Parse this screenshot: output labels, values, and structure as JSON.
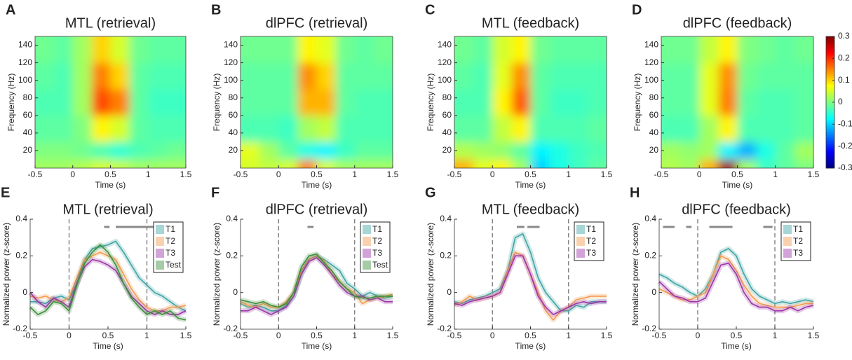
{
  "chart_data": [
    {
      "type": "heatmap",
      "panel": "A",
      "title": "MTL (retrieval)",
      "xlabel": "Time (s)",
      "ylabel": "Frequency (Hz)",
      "colormap": "jet",
      "clim": [
        -0.3,
        0.3
      ],
      "xbins": [
        -0.5,
        -0.25,
        0,
        0.25,
        0.5,
        0.75,
        1,
        1.25,
        1.5
      ],
      "ybins": [
        0,
        10,
        30,
        60,
        90,
        120,
        150
      ],
      "values": [
        [
          0.02,
          0.02,
          0.03,
          0.05,
          0.04,
          0.02,
          0.02,
          0.02
        ],
        [
          0,
          0,
          -0.01,
          -0.03,
          -0.05,
          -0.03,
          -0.02,
          -0.01
        ],
        [
          -0.02,
          -0.02,
          0,
          0.08,
          0.05,
          -0.02,
          -0.03,
          -0.03
        ],
        [
          -0.03,
          -0.03,
          0.02,
          0.18,
          0.15,
          -0.02,
          -0.04,
          -0.04
        ],
        [
          -0.02,
          -0.03,
          0.02,
          0.15,
          0.1,
          -0.02,
          -0.03,
          -0.03
        ],
        [
          -0.01,
          -0.02,
          0.02,
          0.1,
          0.05,
          -0.01,
          -0.02,
          -0.02
        ]
      ],
      "xlim": [
        -0.5,
        1.5
      ],
      "xticks": [
        -0.5,
        0,
        0.5,
        1,
        1.5
      ],
      "ylim": [
        0,
        150
      ],
      "yticks": [
        20,
        40,
        60,
        80,
        100,
        120,
        140
      ]
    },
    {
      "type": "heatmap",
      "panel": "B",
      "title": "dlPFC (retrieval)",
      "xlabel": "Time (s)",
      "ylabel": "Frequency (Hz)",
      "colormap": "jet",
      "clim": [
        -0.3,
        0.3
      ],
      "xbins": [
        -0.5,
        -0.25,
        0,
        0.25,
        0.5,
        0.75,
        1,
        1.25,
        1.5
      ],
      "ybins": [
        0,
        10,
        30,
        60,
        90,
        120,
        150
      ],
      "values": [
        [
          0.05,
          0.04,
          0.05,
          0.15,
          0.05,
          0.02,
          0.02,
          0.02
        ],
        [
          0.06,
          0.02,
          -0.02,
          -0.06,
          -0.08,
          -0.04,
          -0.02,
          -0.02
        ],
        [
          -0.03,
          -0.03,
          -0.04,
          0.02,
          0.04,
          -0.03,
          -0.03,
          -0.03
        ],
        [
          -0.02,
          -0.02,
          -0.02,
          0.12,
          0.12,
          -0.02,
          -0.03,
          -0.03
        ],
        [
          -0.02,
          -0.02,
          -0.02,
          0.14,
          0.1,
          -0.02,
          -0.02,
          -0.02
        ],
        [
          -0.01,
          -0.01,
          -0.01,
          0.08,
          0.06,
          -0.01,
          -0.02,
          -0.01
        ]
      ],
      "xlim": [
        -0.5,
        1.5
      ],
      "xticks": [
        -0.5,
        0,
        0.5,
        1,
        1.5
      ],
      "ylim": [
        0,
        150
      ],
      "yticks": [
        20,
        40,
        60,
        80,
        100,
        120,
        140
      ]
    },
    {
      "type": "heatmap",
      "panel": "C",
      "title": "MTL (feedback)",
      "xlabel": "Time (s)",
      "ylabel": "Frequency (Hz)",
      "colormap": "jet",
      "clim": [
        -0.3,
        0.3
      ],
      "xbins": [
        -0.5,
        -0.25,
        0,
        0.25,
        0.5,
        0.75,
        1,
        1.25,
        1.5
      ],
      "ybins": [
        0,
        10,
        30,
        60,
        90,
        120,
        150
      ],
      "values": [
        [
          0.12,
          0.06,
          0.08,
          0.02,
          -0.1,
          -0.06,
          -0.04,
          -0.02
        ],
        [
          0.03,
          0.02,
          0.01,
          -0.02,
          -0.08,
          -0.06,
          -0.04,
          -0.03
        ],
        [
          -0.02,
          -0.02,
          0.04,
          0.08,
          -0.03,
          -0.03,
          -0.03,
          -0.02
        ],
        [
          -0.03,
          -0.03,
          0.08,
          0.17,
          -0.02,
          -0.04,
          -0.04,
          -0.03
        ],
        [
          -0.02,
          -0.03,
          0.06,
          0.14,
          -0.02,
          -0.03,
          -0.03,
          -0.03
        ],
        [
          -0.01,
          -0.02,
          0.05,
          0.08,
          -0.01,
          -0.02,
          -0.02,
          -0.02
        ]
      ],
      "xlim": [
        -0.5,
        1.5
      ],
      "xticks": [
        -0.5,
        0,
        0.5,
        1,
        1.5
      ],
      "ylim": [
        0,
        150
      ],
      "yticks": [
        20,
        40,
        60,
        80,
        100,
        120,
        140
      ]
    },
    {
      "type": "heatmap",
      "panel": "D",
      "title": "dlPFC (feedback)",
      "xlabel": "Time (s)",
      "ylabel": "Frequency (Hz)",
      "colormap": "jet",
      "clim": [
        -0.3,
        0.3
      ],
      "cticks": [
        -0.3,
        -0.2,
        -0.1,
        0,
        0.1,
        0.2,
        0.3
      ],
      "xbins": [
        -0.5,
        -0.25,
        0,
        0.25,
        0.5,
        0.75,
        1,
        1.25,
        1.5
      ],
      "ybins": [
        0,
        10,
        30,
        60,
        90,
        120,
        150
      ],
      "values": [
        [
          0.03,
          0.02,
          0.12,
          0.28,
          0.02,
          -0.04,
          -0.02,
          0
        ],
        [
          0.02,
          0.01,
          0.02,
          -0.08,
          -0.12,
          -0.06,
          -0.02,
          0.02
        ],
        [
          -0.03,
          -0.03,
          0.02,
          0.08,
          -0.03,
          -0.03,
          -0.03,
          -0.02
        ],
        [
          -0.02,
          -0.02,
          0.06,
          0.15,
          -0.02,
          -0.03,
          -0.03,
          -0.02
        ],
        [
          -0.02,
          -0.02,
          0.06,
          0.14,
          -0.01,
          -0.02,
          -0.02,
          -0.02
        ],
        [
          -0.01,
          -0.01,
          0.04,
          0.08,
          0,
          -0.01,
          -0.02,
          -0.01
        ]
      ],
      "xlim": [
        -0.5,
        1.5
      ],
      "xticks": [
        -0.5,
        0,
        0.5,
        1,
        1.5
      ],
      "ylim": [
        0,
        150
      ],
      "yticks": [
        20,
        40,
        60,
        80,
        100,
        120,
        140
      ]
    },
    {
      "type": "line",
      "panel": "E",
      "title": "MTL (retrieval)",
      "xlabel": "Time (s)",
      "ylabel": "Normalized power (z-score)",
      "legend": "upper right",
      "x": [
        -0.5,
        -0.4,
        -0.3,
        -0.2,
        -0.1,
        0,
        0.1,
        0.2,
        0.3,
        0.4,
        0.5,
        0.6,
        0.7,
        0.8,
        0.9,
        1,
        1.1,
        1.2,
        1.3,
        1.4,
        1.5
      ],
      "series": [
        {
          "name": "T1",
          "color": "#3fa3a3",
          "values": [
            -0.05,
            -0.05,
            -0.06,
            -0.03,
            -0.02,
            -0.04,
            0.05,
            0.18,
            0.24,
            0.25,
            0.26,
            0.28,
            0.22,
            0.15,
            0.08,
            0.04,
            0,
            -0.02,
            -0.05,
            -0.08,
            -0.1
          ]
        },
        {
          "name": "T2",
          "color": "#f39a4e",
          "values": [
            -0.02,
            -0.03,
            -0.02,
            -0.04,
            -0.05,
            -0.03,
            0.08,
            0.18,
            0.2,
            0.22,
            0.2,
            0.18,
            0.1,
            0.02,
            -0.04,
            -0.08,
            -0.1,
            -0.1,
            -0.08,
            -0.08,
            -0.07
          ]
        },
        {
          "name": "T3",
          "color": "#9b34a8",
          "values": [
            0,
            -0.05,
            -0.08,
            -0.03,
            -0.05,
            -0.08,
            0.05,
            0.14,
            0.18,
            0.17,
            0.15,
            0.12,
            0.05,
            -0.02,
            -0.06,
            -0.1,
            -0.12,
            -0.1,
            -0.12,
            -0.12,
            -0.1
          ]
        },
        {
          "name": "Test",
          "color": "#3a8f3a",
          "values": [
            -0.08,
            -0.12,
            -0.1,
            -0.05,
            -0.06,
            -0.1,
            0.04,
            0.16,
            0.22,
            0.26,
            0.22,
            0.15,
            0.05,
            -0.03,
            -0.08,
            -0.12,
            -0.1,
            -0.12,
            -0.1,
            -0.14,
            -0.15
          ]
        }
      ],
      "vlines": [
        0,
        1
      ],
      "sig_bars": [
        [
          0.45,
          0.52
        ],
        [
          0.6,
          1.1
        ]
      ],
      "xlim": [
        -0.5,
        1.5
      ],
      "xticks": [
        -0.5,
        0,
        0.5,
        1,
        1.5
      ],
      "ylim": [
        -0.2,
        0.4
      ],
      "yticks": [
        -0.2,
        0,
        0.2,
        0.4
      ]
    },
    {
      "type": "line",
      "panel": "F",
      "title": "dlPFC (retrieval)",
      "xlabel": "Time (s)",
      "ylabel": "Normalized power (z-score)",
      "legend": "upper right",
      "x": [
        -0.5,
        -0.4,
        -0.3,
        -0.2,
        -0.1,
        0,
        0.1,
        0.2,
        0.3,
        0.4,
        0.5,
        0.6,
        0.7,
        0.8,
        0.9,
        1,
        1.1,
        1.2,
        1.3,
        1.4,
        1.5
      ],
      "series": [
        {
          "name": "T1",
          "color": "#3fa3a3",
          "values": [
            -0.06,
            -0.08,
            -0.07,
            -0.08,
            -0.1,
            -0.1,
            -0.07,
            -0.02,
            0.1,
            0.18,
            0.2,
            0.18,
            0.15,
            0.12,
            0.05,
            0.02,
            -0.02,
            0,
            -0.02,
            -0.03,
            -0.02
          ]
        },
        {
          "name": "T2",
          "color": "#f39a4e",
          "values": [
            -0.05,
            -0.07,
            -0.08,
            -0.06,
            -0.08,
            -0.08,
            -0.05,
            0,
            0.12,
            0.18,
            0.2,
            0.17,
            0.1,
            0.06,
            0.02,
            0,
            -0.06,
            -0.04,
            -0.03,
            -0.02,
            -0.01
          ]
        },
        {
          "name": "T3",
          "color": "#9b34a8",
          "values": [
            -0.1,
            -0.1,
            -0.08,
            -0.1,
            -0.12,
            -0.1,
            -0.08,
            -0.02,
            0.1,
            0.17,
            0.19,
            0.15,
            0.1,
            0.04,
            0,
            -0.02,
            -0.02,
            -0.04,
            -0.03,
            -0.05,
            -0.05
          ]
        },
        {
          "name": "Test",
          "color": "#3a8f3a",
          "values": [
            -0.04,
            -0.05,
            -0.06,
            -0.05,
            -0.07,
            -0.08,
            -0.06,
            0,
            0.14,
            0.2,
            0.21,
            0.16,
            0.12,
            0.06,
            0.02,
            -0.02,
            -0.03,
            -0.03,
            -0.02,
            -0.02,
            -0.02
          ]
        }
      ],
      "vlines": [
        0,
        1
      ],
      "sig_bars": [
        [
          0.38,
          0.46
        ]
      ],
      "xlim": [
        -0.5,
        1.5
      ],
      "xticks": [
        -0.5,
        0,
        0.5,
        1,
        1.5
      ],
      "ylim": [
        -0.2,
        0.4
      ],
      "yticks": [
        -0.2,
        0,
        0.2,
        0.4
      ]
    },
    {
      "type": "line",
      "panel": "G",
      "title": "MTL (feedback)",
      "xlabel": "Time (s)",
      "ylabel": "Normalized power (z-score)",
      "legend": "upper right",
      "x": [
        -0.5,
        -0.4,
        -0.3,
        -0.2,
        -0.1,
        0,
        0.1,
        0.2,
        0.3,
        0.4,
        0.5,
        0.6,
        0.7,
        0.8,
        0.9,
        1,
        1.1,
        1.2,
        1.3,
        1.4,
        1.5
      ],
      "series": [
        {
          "name": "T1",
          "color": "#3fa3a3",
          "values": [
            -0.05,
            -0.06,
            -0.04,
            -0.03,
            -0.02,
            0,
            0.02,
            0.12,
            0.3,
            0.32,
            0.22,
            0.08,
            0,
            -0.05,
            -0.1,
            -0.1,
            -0.07,
            -0.08,
            -0.05,
            -0.05,
            -0.05
          ]
        },
        {
          "name": "T2",
          "color": "#f39a4e",
          "values": [
            -0.07,
            -0.05,
            -0.02,
            -0.04,
            -0.03,
            -0.02,
            0,
            0.12,
            0.22,
            0.2,
            0.1,
            0,
            -0.1,
            -0.15,
            -0.1,
            -0.08,
            -0.04,
            -0.03,
            -0.02,
            -0.02,
            -0.02
          ]
        },
        {
          "name": "T3",
          "color": "#9b34a8",
          "values": [
            -0.06,
            -0.07,
            -0.05,
            -0.04,
            -0.03,
            -0.02,
            0,
            0.1,
            0.2,
            0.2,
            0.1,
            -0.02,
            -0.08,
            -0.12,
            -0.1,
            -0.08,
            -0.06,
            -0.05,
            -0.06,
            -0.05,
            -0.05
          ]
        }
      ],
      "vlines": [
        0,
        1
      ],
      "sig_bars": [
        [
          0.32,
          0.42
        ],
        [
          0.46,
          0.62
        ]
      ],
      "xlim": [
        -0.5,
        1.5
      ],
      "xticks": [
        -0.5,
        0,
        0.5,
        1,
        1.5
      ],
      "ylim": [
        -0.2,
        0.4
      ],
      "yticks": [
        -0.2,
        0,
        0.2,
        0.4
      ]
    },
    {
      "type": "line",
      "panel": "H",
      "title": "dlPFC (feedback)",
      "xlabel": "Time (s)",
      "ylabel": "Normalized power (z-score)",
      "legend": "upper right",
      "x": [
        -0.5,
        -0.4,
        -0.3,
        -0.2,
        -0.1,
        0,
        0.1,
        0.2,
        0.3,
        0.4,
        0.5,
        0.6,
        0.7,
        0.8,
        0.9,
        1,
        1.1,
        1.2,
        1.3,
        1.4,
        1.5
      ],
      "series": [
        {
          "name": "T1",
          "color": "#3fa3a3",
          "values": [
            0.1,
            0.08,
            0.05,
            0.03,
            0,
            -0.02,
            0.02,
            0.1,
            0.22,
            0.24,
            0.2,
            0.1,
            0.02,
            -0.02,
            -0.04,
            -0.06,
            -0.05,
            -0.06,
            -0.05,
            -0.04,
            -0.05
          ]
        },
        {
          "name": "T2",
          "color": "#f39a4e",
          "values": [
            0.02,
            0,
            -0.02,
            -0.04,
            -0.04,
            -0.02,
            0,
            0.1,
            0.2,
            0.18,
            0.12,
            0.04,
            -0.02,
            -0.06,
            -0.07,
            -0.08,
            -0.08,
            -0.08,
            -0.07,
            -0.06,
            -0.06
          ]
        },
        {
          "name": "T3",
          "color": "#9b34a8",
          "values": [
            0.06,
            0.02,
            -0.02,
            -0.03,
            -0.05,
            -0.05,
            -0.03,
            0.06,
            0.15,
            0.16,
            0.1,
            0,
            -0.06,
            -0.08,
            -0.08,
            -0.1,
            -0.1,
            -0.08,
            -0.1,
            -0.08,
            -0.07
          ]
        }
      ],
      "vlines": [
        0,
        1
      ],
      "sig_bars": [
        [
          -0.45,
          -0.3
        ],
        [
          -0.15,
          -0.08
        ],
        [
          0.15,
          0.45
        ],
        [
          0.85,
          0.97
        ]
      ],
      "xlim": [
        -0.5,
        1.5
      ],
      "xticks": [
        -0.5,
        0,
        0.5,
        1,
        1.5
      ],
      "ylim": [
        -0.2,
        0.4
      ],
      "yticks": [
        -0.2,
        0,
        0.2,
        0.4
      ]
    }
  ]
}
